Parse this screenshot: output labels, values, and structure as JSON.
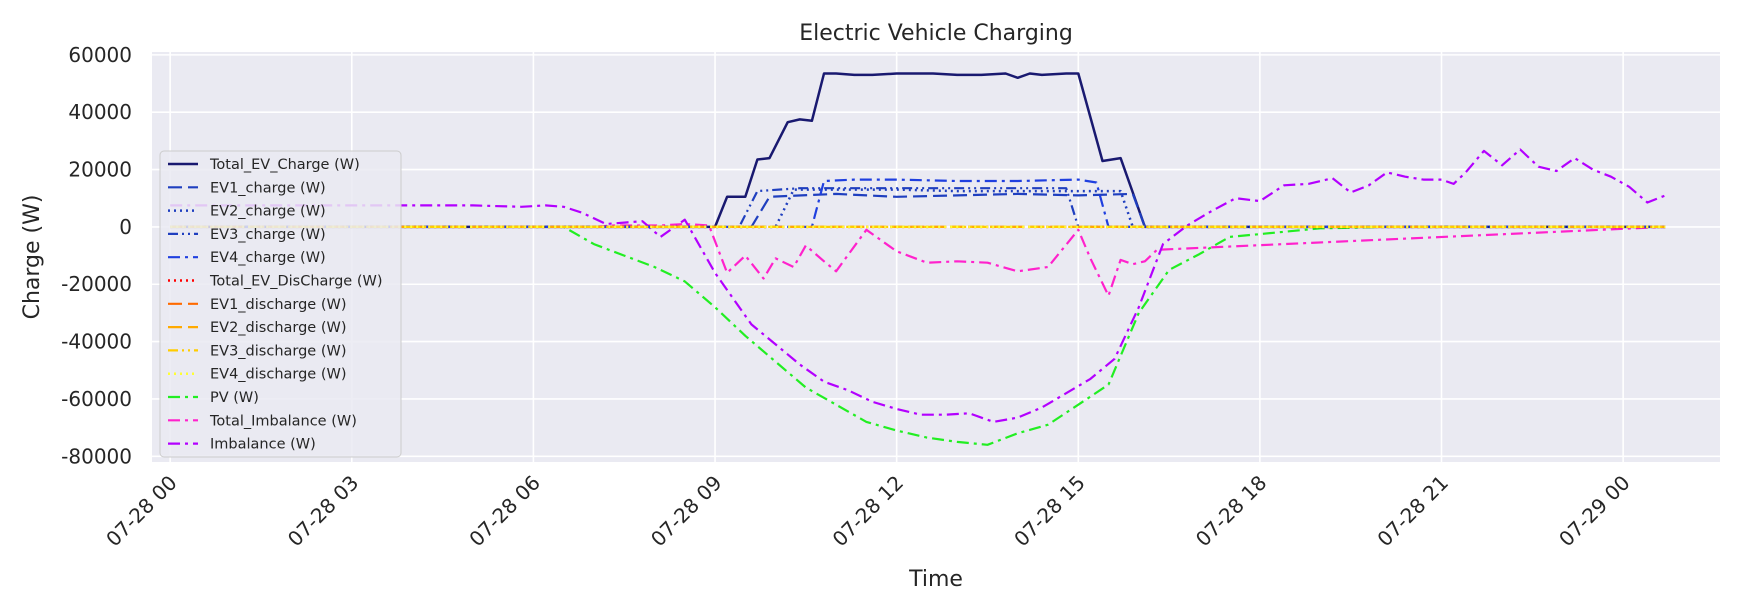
{
  "chart_data": {
    "type": "line",
    "title": "Electric Vehicle Charging",
    "xlabel": "Time",
    "ylabel": "Charge (W)",
    "ylim": [
      -82000,
      61000
    ],
    "yticks": [
      60000,
      40000,
      20000,
      0,
      -20000,
      -40000,
      -60000,
      -80000
    ],
    "xlim_hours": [
      -0.3,
      25.6
    ],
    "xticks": [
      {
        "hour": 0,
        "label": "07-28 00"
      },
      {
        "hour": 3,
        "label": "07-28 03"
      },
      {
        "hour": 6,
        "label": "07-28 06"
      },
      {
        "hour": 9,
        "label": "07-28 09"
      },
      {
        "hour": 12,
        "label": "07-28 12"
      },
      {
        "hour": 15,
        "label": "07-28 15"
      },
      {
        "hour": 18,
        "label": "07-28 18"
      },
      {
        "hour": 21,
        "label": "07-28 21"
      },
      {
        "hour": 24,
        "label": "07-29 00"
      }
    ],
    "grid": true,
    "legend_position": "center-left",
    "background": "#eaeaf2",
    "series": [
      {
        "name": "Total_EV_Charge (W)",
        "color": "#191970",
        "dash": "",
        "width": 2.5,
        "x": [
          0,
          9.0,
          9.2,
          9.5,
          9.7,
          9.9,
          10.2,
          10.4,
          10.6,
          10.8,
          11.0,
          11.3,
          11.6,
          12.0,
          12.3,
          12.6,
          13.0,
          13.4,
          13.8,
          14.0,
          14.2,
          14.4,
          14.8,
          15.0,
          15.4,
          15.7,
          15.9,
          16.1,
          24.7
        ],
        "y": [
          0,
          0,
          10500,
          10500,
          23500,
          24000,
          36500,
          37500,
          37000,
          53500,
          53500,
          53000,
          53000,
          53500,
          53500,
          53500,
          53000,
          53000,
          53500,
          52000,
          53500,
          53000,
          53500,
          53500,
          23000,
          24000,
          12000,
          0,
          0
        ]
      },
      {
        "name": "EV1_charge (W)",
        "color": "#1f3fbf",
        "dash": "14,6",
        "width": 2.2,
        "x": [
          0,
          9.6,
          9.9,
          11.0,
          12.0,
          13.0,
          14.0,
          15.0,
          15.9,
          16.1,
          24.7
        ],
        "y": [
          0,
          0,
          10500,
          11500,
          10500,
          11000,
          11500,
          11000,
          11500,
          0,
          0
        ]
      },
      {
        "name": "EV2_charge (W)",
        "color": "#1f3fbf",
        "dash": "2,4",
        "width": 2.5,
        "x": [
          0,
          10.0,
          10.3,
          11.0,
          12.0,
          13.0,
          14.0,
          15.0,
          15.7,
          15.9,
          24.7
        ],
        "y": [
          0,
          0,
          13000,
          13000,
          13000,
          12500,
          12500,
          12500,
          12500,
          0,
          0
        ]
      },
      {
        "name": "EV3_charge (W)",
        "color": "#1f3fbf",
        "dash": "10,4,2,4,2,4",
        "width": 2.2,
        "x": [
          0,
          9.4,
          9.7,
          10.4,
          11.0,
          12.0,
          13.0,
          14.0,
          14.8,
          15.0,
          24.7
        ],
        "y": [
          0,
          0,
          12500,
          13500,
          13500,
          13500,
          13500,
          13500,
          13500,
          0,
          0
        ]
      },
      {
        "name": "EV4_charge (W)",
        "color": "#1f3fdf",
        "dash": "12,5,3,5",
        "width": 2.2,
        "x": [
          0,
          10.6,
          10.8,
          11.3,
          12.0,
          13.0,
          14.0,
          15.0,
          15.3,
          15.5,
          24.7
        ],
        "y": [
          0,
          0,
          16000,
          16500,
          16500,
          16000,
          16000,
          16500,
          15500,
          0,
          0
        ]
      },
      {
        "name": "Total_EV_DisCharge (W)",
        "color": "#ff0000",
        "dash": "2,4",
        "width": 2.5,
        "x": [
          0,
          24.7
        ],
        "y": [
          0,
          0
        ]
      },
      {
        "name": "EV1_discharge (W)",
        "color": "#ff6a00",
        "dash": "14,6",
        "width": 2.2,
        "x": [
          0,
          24.7
        ],
        "y": [
          0,
          0
        ]
      },
      {
        "name": "EV2_discharge (W)",
        "color": "#ffaa00",
        "dash": "14,6",
        "width": 2.2,
        "x": [
          0,
          24.7
        ],
        "y": [
          0,
          0
        ]
      },
      {
        "name": "EV3_discharge (W)",
        "color": "#ffcc00",
        "dash": "10,4,2,4,2,4",
        "width": 2.2,
        "x": [
          0,
          24.7
        ],
        "y": [
          0,
          0
        ]
      },
      {
        "name": "EV4_discharge (W)",
        "color": "#ffff33",
        "dash": "2,4",
        "width": 2.5,
        "x": [
          0,
          24.7
        ],
        "y": [
          0,
          0
        ]
      },
      {
        "name": "PV (W)",
        "color": "#22ee22",
        "dash": "12,5,3,5",
        "width": 2.2,
        "x": [
          0,
          6.0,
          6.5,
          7.0,
          7.5,
          8.0,
          8.5,
          9.0,
          9.5,
          10.0,
          10.5,
          11.0,
          11.5,
          12.0,
          12.5,
          13.0,
          13.5,
          14.0,
          14.5,
          15.0,
          15.5,
          16.0,
          16.5,
          17.0,
          17.5,
          18.0,
          18.5,
          19.0,
          19.5,
          20.0,
          24.7
        ],
        "y": [
          0,
          0,
          0,
          -6000,
          -10000,
          -14000,
          -19000,
          -28000,
          -38000,
          -47000,
          -56000,
          -62000,
          -68000,
          -71000,
          -73500,
          -75000,
          -76000,
          -72000,
          -69000,
          -62000,
          -55000,
          -30000,
          -15000,
          -9500,
          -3500,
          -2500,
          -1500,
          -500,
          -300,
          0,
          0
        ]
      },
      {
        "name": "Total_Imbalance (W)",
        "color": "#ff22cc",
        "dash": "12,5,3,5",
        "width": 2.2,
        "x": [
          0,
          6.0,
          6.5,
          7.0,
          7.3,
          7.7,
          8.1,
          8.5,
          8.9,
          9.2,
          9.5,
          9.8,
          10.0,
          10.3,
          10.5,
          10.8,
          11.0,
          11.5,
          12.0,
          12.5,
          13.0,
          13.5,
          14.0,
          14.5,
          15.0,
          15.2,
          15.5,
          15.7,
          15.9,
          16.1,
          16.3,
          24.7
        ],
        "y": [
          0,
          0,
          0,
          0,
          500,
          500,
          500,
          1000,
          500,
          -16000,
          -10000,
          -18000,
          -11000,
          -14000,
          -6500,
          -12000,
          -15500,
          -1000,
          -8500,
          -12500,
          -12000,
          -12500,
          -15500,
          -14000,
          -1000,
          -11000,
          -24000,
          -11500,
          -13000,
          -12000,
          -8000,
          0
        ]
      },
      {
        "name": "Imbalance (W)",
        "color": "#b300ff",
        "dash": "12,5,3,5",
        "width": 2.2,
        "x": [
          0,
          1.0,
          2.0,
          3.0,
          4.0,
          5.0,
          5.8,
          6.2,
          6.5,
          6.8,
          7.2,
          7.5,
          7.8,
          8.1,
          8.5,
          9.0,
          9.3,
          9.6,
          10.0,
          10.4,
          10.8,
          11.2,
          11.6,
          12.0,
          12.4,
          12.8,
          13.2,
          13.6,
          14.0,
          14.4,
          14.8,
          15.2,
          15.6,
          16.0,
          16.4,
          16.8,
          17.2,
          17.6,
          18.0,
          18.4,
          18.8,
          19.2,
          19.5,
          19.8,
          20.1,
          20.4,
          20.7,
          21.0,
          21.2,
          21.4,
          21.7,
          22.0,
          22.3,
          22.6,
          22.9,
          23.2,
          23.5,
          23.8,
          24.1,
          24.4,
          24.7
        ],
        "y": [
          7500,
          7500,
          7500,
          7500,
          7500,
          7500,
          7000,
          7500,
          7000,
          5000,
          1000,
          1500,
          2000,
          -3500,
          2500,
          -16000,
          -25000,
          -34000,
          -41000,
          -48000,
          -54000,
          -57000,
          -61000,
          -63500,
          -65500,
          -65500,
          -65000,
          -68000,
          -66500,
          -63000,
          -58000,
          -53000,
          -46000,
          -28000,
          -6000,
          500,
          5500,
          10000,
          9000,
          14500,
          15000,
          17000,
          12000,
          14500,
          19000,
          17500,
          16500,
          16500,
          15000,
          19000,
          26500,
          21500,
          27000,
          21000,
          19500,
          24000,
          20000,
          17500,
          14000,
          8500,
          11000
        ]
      }
    ]
  }
}
